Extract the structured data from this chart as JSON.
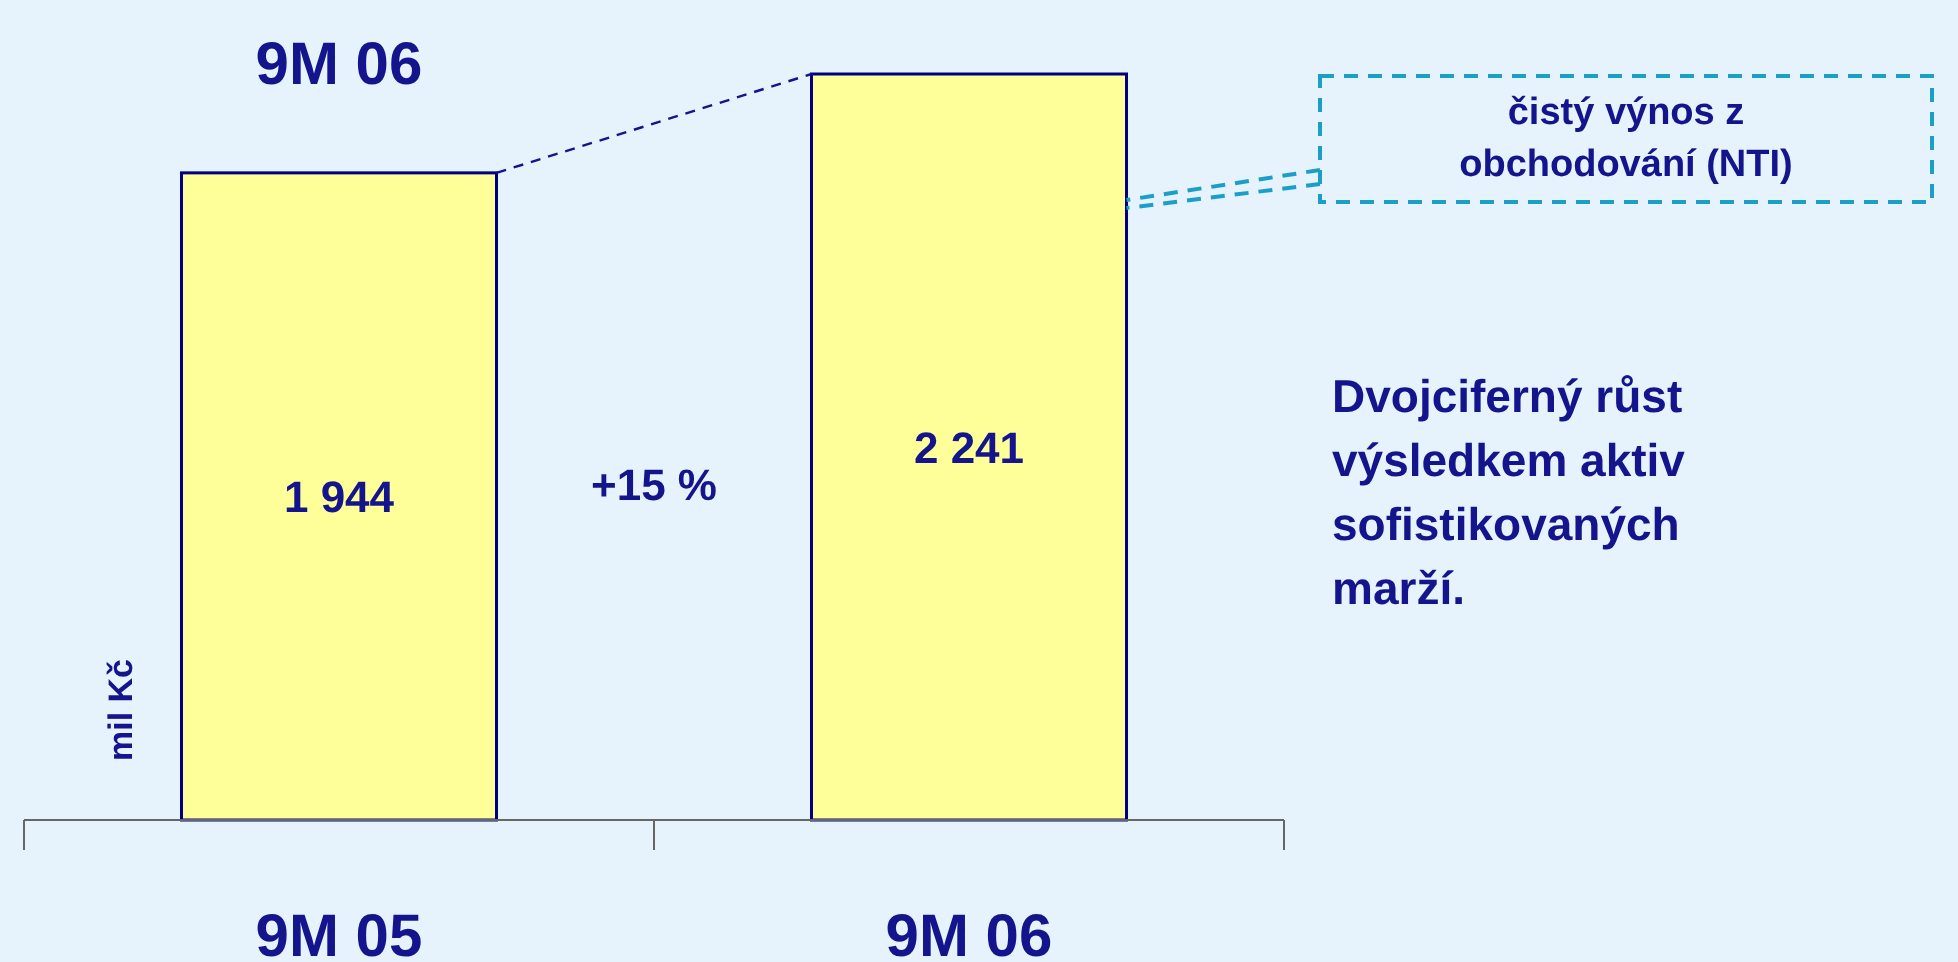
{
  "chart_data": {
    "type": "bar",
    "title": "9M 06",
    "ylabel": "mil Kč",
    "categories": [
      "9M 05",
      "9M 06"
    ],
    "values": [
      1944,
      2241
    ],
    "value_labels": [
      "1 944",
      "2 241"
    ],
    "color": "#ffff99",
    "annotations": [
      "+15 %",
      "čistý výnos z obchodování (NTI)",
      "Dvojciferný růst výsledkem aktiv sofistikovaných marží."
    ]
  }
}
